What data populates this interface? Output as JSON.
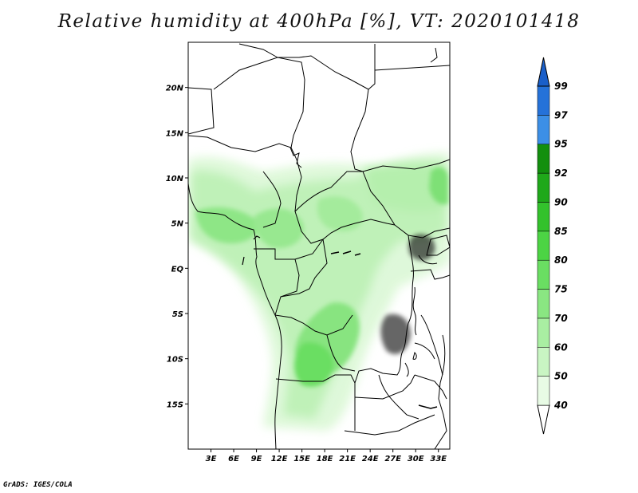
{
  "title": "Relative humidity at 400hPa [%], VT: 2020101418",
  "credit": "GrADS: IGES/COLA",
  "map": {
    "region": "Central Africa",
    "variable": "Relative humidity",
    "level": "400hPa",
    "units": "%",
    "valid_time": "2020101418",
    "lon_range": [
      0,
      34.5
    ],
    "lat_range": [
      -20,
      25
    ],
    "lat_ticks": [
      {
        "value": 20,
        "label": "20N"
      },
      {
        "value": 15,
        "label": "15N"
      },
      {
        "value": 10,
        "label": "10N"
      },
      {
        "value": 5,
        "label": "5N"
      },
      {
        "value": 0,
        "label": "EQ"
      },
      {
        "value": -5,
        "label": "5S"
      },
      {
        "value": -10,
        "label": "10S"
      },
      {
        "value": -15,
        "label": "15S"
      }
    ],
    "lon_ticks": [
      {
        "value": 3,
        "label": "3E"
      },
      {
        "value": 6,
        "label": "6E"
      },
      {
        "value": 9,
        "label": "9E"
      },
      {
        "value": 12,
        "label": "12E"
      },
      {
        "value": 15,
        "label": "15E"
      },
      {
        "value": 18,
        "label": "18E"
      },
      {
        "value": 21,
        "label": "21E"
      },
      {
        "value": 24,
        "label": "24E"
      },
      {
        "value": 27,
        "label": "27E"
      },
      {
        "value": 30,
        "label": "30E"
      },
      {
        "value": 33,
        "label": "33E"
      }
    ]
  },
  "colorbar": {
    "levels": [
      {
        "label": "40",
        "color": "#e8fbe5"
      },
      {
        "label": "50",
        "color": "#c9f5c3"
      },
      {
        "label": "60",
        "color": "#a9eea2"
      },
      {
        "label": "70",
        "color": "#8ae682"
      },
      {
        "label": "75",
        "color": "#6ade62"
      },
      {
        "label": "80",
        "color": "#4cd444"
      },
      {
        "label": "85",
        "color": "#33c22c"
      },
      {
        "label": "90",
        "color": "#1fa81a"
      },
      {
        "label": "92",
        "color": "#128f0e"
      },
      {
        "label": "95",
        "color": "#3c8fe6"
      },
      {
        "label": "97",
        "color": "#2572d9"
      },
      {
        "label": "99",
        "color": "#1a5fc9"
      }
    ],
    "bottom_color": "#ffffff"
  }
}
